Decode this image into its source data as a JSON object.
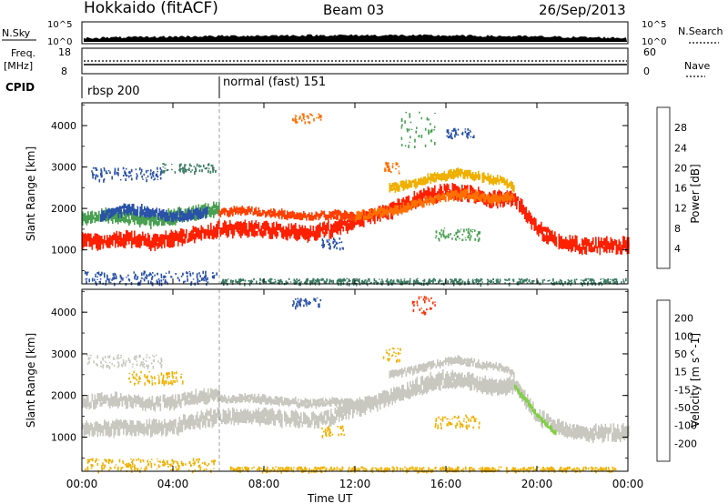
{
  "header": {
    "station": "Hokkaido (fitACF)",
    "beam": "Beam 03",
    "date": "26/Sep/2013"
  },
  "housekeeping": {
    "nsky_label": "N.Sky",
    "nsearch_label": "N.Search",
    "freq_label_1": "Freq.",
    "freq_label_2": "[MHz]",
    "nave_label": "Nave",
    "cpid_label": "CPID",
    "noise_ticks": [
      "10^5",
      "10^0"
    ],
    "freq_ticks": [
      "18",
      "8"
    ],
    "nave_ticks": [
      "60",
      "0"
    ],
    "cpid_segments": [
      {
        "label": "rbsp 200",
        "start_hour": 0
      },
      {
        "label": "normal (fast) 151",
        "start_hour": 6
      }
    ]
  },
  "chart_data": [
    {
      "type": "heatmap",
      "title": "",
      "ylabel": "Slant Range [km]",
      "xlabel": "",
      "ylim": [
        180,
        4550
      ],
      "x_range_hours": [
        0,
        24
      ],
      "yticks": [
        "1000",
        "2000",
        "3000",
        "4000"
      ],
      "colorbar": {
        "label": "Power [dB]",
        "ticks": [
          "4",
          "8",
          "12",
          "16",
          "20",
          "24",
          "28"
        ],
        "colors": [
          "#1a24e8",
          "#2a52a8",
          "#3a7a62",
          "#48a050",
          "#f0b000",
          "#ff7000",
          "#ff3000",
          "#ff0000"
        ]
      },
      "bands": [
        {
          "t": [
            0,
            1,
            2,
            3,
            4,
            5,
            6,
            7,
            8,
            9,
            10,
            11,
            12,
            13,
            14,
            15,
            16,
            17,
            18,
            19,
            20,
            21,
            22,
            23,
            24
          ],
          "r": [
            1200,
            1200,
            1250,
            1200,
            1250,
            1400,
            1500,
            1500,
            1500,
            1450,
            1400,
            1500,
            1700,
            1850,
            2050,
            2300,
            2400,
            2350,
            2200,
            2250,
            1500,
            1200,
            1100,
            1100,
            1100
          ],
          "w": 420,
          "c": "#ff2000"
        },
        {
          "t": [
            0,
            1,
            2,
            3,
            4,
            5,
            6
          ],
          "r": [
            1750,
            1850,
            1800,
            1700,
            1800,
            1900,
            2000
          ],
          "w": 380,
          "c": "#48a050"
        },
        {
          "t": [
            0.8,
            2,
            3,
            4,
            5.5
          ],
          "r": [
            1800,
            2000,
            1900,
            1800,
            1900
          ],
          "w": 300,
          "c": "#2a52a8"
        },
        {
          "t": [
            12,
            13,
            14,
            15,
            16,
            17,
            18,
            19
          ],
          "r": [
            1800,
            1900,
            2000,
            2150,
            2300,
            2350,
            2200,
            2300
          ],
          "w": 260,
          "c": "#ff7000"
        },
        {
          "t": [
            6,
            7,
            8,
            9,
            10,
            11,
            12
          ],
          "r": [
            1900,
            1950,
            1900,
            1850,
            1800,
            1850,
            1800
          ],
          "w": 240,
          "c": "#ff4000"
        },
        {
          "t": [
            13.5,
            14.5,
            15.5,
            16.5,
            17.5,
            18.5,
            19
          ],
          "r": [
            2500,
            2600,
            2750,
            2850,
            2750,
            2650,
            2500
          ],
          "w": 260,
          "c": "#f0b000"
        }
      ],
      "patches": [
        {
          "t": [
            0.4,
            3.5
          ],
          "r": [
            2700,
            3000
          ],
          "c": "#2a52a8"
        },
        {
          "t": [
            3.5,
            5.9
          ],
          "r": [
            2900,
            3100
          ],
          "c": "#3a7a62"
        },
        {
          "t": [
            9.2,
            10.5
          ],
          "r": [
            4100,
            4300
          ],
          "c": "#ff7000"
        },
        {
          "t": [
            13.2,
            14.0
          ],
          "r": [
            2850,
            3150
          ],
          "c": "#ff7000"
        },
        {
          "t": [
            14.0,
            15.5
          ],
          "r": [
            3500,
            4400
          ],
          "c": "#48a050"
        },
        {
          "t": [
            16.0,
            17.2
          ],
          "r": [
            3700,
            3950
          ],
          "c": "#2a52a8"
        },
        {
          "t": [
            10.5,
            11.5
          ],
          "r": [
            1050,
            1300
          ],
          "c": "#2a52a8"
        },
        {
          "t": [
            15.5,
            17.5
          ],
          "r": [
            1250,
            1550
          ],
          "c": "#48a050"
        },
        {
          "t": [
            0.1,
            5.9
          ],
          "r": [
            200,
            500
          ],
          "c": "#2a52a8"
        },
        {
          "t": [
            6.1,
            23.9
          ],
          "r": [
            200,
            320
          ],
          "c": "#3a7a62"
        }
      ]
    },
    {
      "type": "heatmap",
      "title": "",
      "ylabel": "Slant Range [km]",
      "xlabel": "Time UT",
      "ylim": [
        180,
        4550
      ],
      "x_range_hours": [
        0,
        24
      ],
      "xticks": [
        "00:00",
        "04:00",
        "08:00",
        "12:00",
        "16:00",
        "20:00",
        "00:00"
      ],
      "yticks": [
        "1000",
        "2000",
        "3000",
        "4000"
      ],
      "colorbar": {
        "label": "Velocity [m s^-1]",
        "ticks": [
          "200",
          "100",
          "50",
          "15",
          "-15",
          "-50",
          "-100",
          "-200"
        ],
        "colors": [
          "#1a24e8",
          "#2a52a8",
          "#48a050",
          "#7fd040",
          "#c8c8c0",
          "#f0b000",
          "#ff7000",
          "#ff3000",
          "#ff0000"
        ]
      },
      "bands": [
        {
          "t": [
            0,
            1,
            2,
            3,
            4,
            5,
            6,
            7,
            8,
            9,
            10,
            11,
            12,
            13,
            14,
            15,
            16,
            17,
            18,
            19,
            20,
            21,
            22,
            23,
            24
          ],
          "r": [
            1200,
            1200,
            1250,
            1200,
            1250,
            1400,
            1500,
            1500,
            1500,
            1450,
            1400,
            1500,
            1700,
            1850,
            2050,
            2300,
            2400,
            2350,
            2200,
            2250,
            1500,
            1200,
            1100,
            1100,
            1100
          ],
          "w": 420,
          "c": "#c8c8c0"
        },
        {
          "t": [
            0,
            1,
            2,
            3,
            4,
            5,
            6
          ],
          "r": [
            1800,
            1900,
            1850,
            1800,
            1850,
            1950,
            2050
          ],
          "w": 380,
          "c": "#c8c8c0"
        },
        {
          "t": [
            12,
            13,
            14,
            15,
            16,
            17,
            18,
            19
          ],
          "r": [
            1800,
            1900,
            2000,
            2150,
            2300,
            2350,
            2200,
            2300
          ],
          "w": 260,
          "c": "#c8c8c0"
        },
        {
          "t": [
            6,
            7,
            8,
            9,
            10,
            11,
            12
          ],
          "r": [
            1900,
            1950,
            1900,
            1850,
            1800,
            1850,
            1800
          ],
          "w": 240,
          "c": "#c8c8c0"
        },
        {
          "t": [
            13.5,
            14.5,
            15.5,
            16.5,
            17.5,
            18.5,
            19
          ],
          "r": [
            2500,
            2600,
            2750,
            2850,
            2750,
            2650,
            2500
          ],
          "w": 220,
          "c": "#c8c8c0"
        },
        {
          "t": [
            19,
            19.6,
            20.2,
            20.8
          ],
          "r": [
            2200,
            1800,
            1400,
            1100
          ],
          "w": 160,
          "c": "#7fd040"
        }
      ],
      "patches": [
        {
          "t": [
            0.2,
            3.5
          ],
          "r": [
            2700,
            3000
          ],
          "c": "#c8c8c0"
        },
        {
          "t": [
            9.2,
            10.5
          ],
          "r": [
            4150,
            4350
          ],
          "c": "#2a52a8"
        },
        {
          "t": [
            13.2,
            14.0
          ],
          "r": [
            2850,
            3150
          ],
          "c": "#f0b000"
        },
        {
          "t": [
            14.5,
            15.5
          ],
          "r": [
            4000,
            4400
          ],
          "c": "#ff3000"
        },
        {
          "t": [
            0.1,
            5.9
          ],
          "r": [
            200,
            500
          ],
          "c": "#f0b000"
        },
        {
          "t": [
            6.5,
            23.5
          ],
          "r": [
            200,
            300
          ],
          "c": "#f0b000"
        },
        {
          "t": [
            2.0,
            4.5
          ],
          "r": [
            2300,
            2600
          ],
          "c": "#f0b000"
        },
        {
          "t": [
            10.5,
            11.5
          ],
          "r": [
            1050,
            1300
          ],
          "c": "#f0b000"
        },
        {
          "t": [
            15.5,
            17.5
          ],
          "r": [
            1250,
            1550
          ],
          "c": "#f0b000"
        }
      ]
    }
  ]
}
